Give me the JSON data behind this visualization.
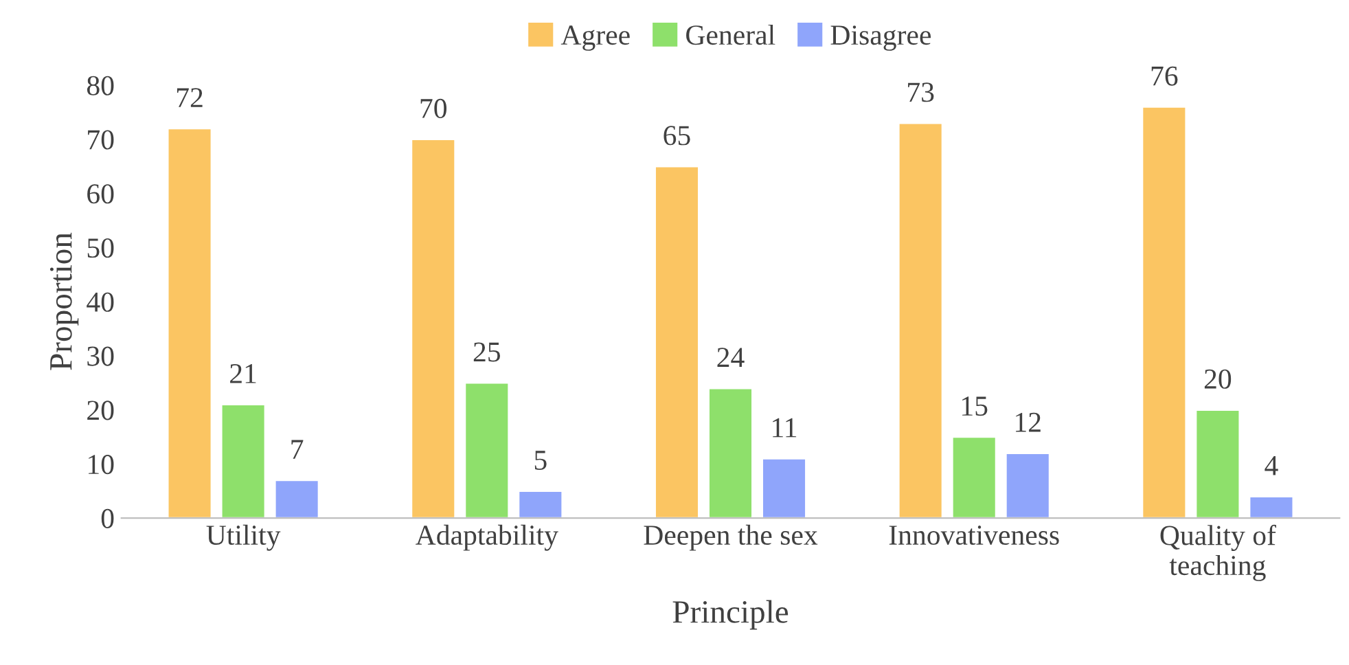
{
  "chart_data": {
    "type": "bar",
    "xlabel": "Principle",
    "ylabel": "Proportion",
    "categories": [
      "Utility",
      "Adaptability",
      "Deepen the sex",
      "Innovativeness",
      "Quality of\nteaching"
    ],
    "series": [
      {
        "name": "Agree",
        "color": "#fbc562",
        "values": [
          72,
          70,
          65,
          73,
          76
        ]
      },
      {
        "name": "General",
        "color": "#8ee06b",
        "values": [
          21,
          25,
          24,
          15,
          20
        ]
      },
      {
        "name": "Disagree",
        "color": "#8fa5fb",
        "values": [
          7,
          5,
          11,
          12,
          4
        ]
      }
    ],
    "ylim": [
      0,
      80
    ],
    "yticks": [
      0,
      10,
      20,
      30,
      40,
      50,
      60,
      70,
      80
    ],
    "data_labels": true,
    "legend": "top",
    "grid": false
  }
}
